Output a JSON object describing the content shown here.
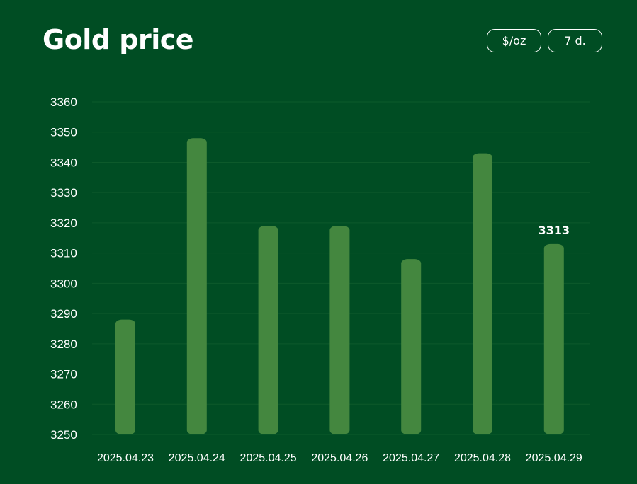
{
  "header": {
    "title": "Gold price",
    "unit_toggle": "$/oz",
    "range_toggle": "7 d."
  },
  "colors": {
    "background": "#004d23",
    "bar": "#44873f",
    "grid": "#0d5a2b",
    "divider": "#6ba35f"
  },
  "chart_data": {
    "type": "bar",
    "categories": [
      "2025.04.23",
      "2025.04.24",
      "2025.04.25",
      "2025.04.26",
      "2025.04.27",
      "2025.04.28",
      "2025.04.29"
    ],
    "values": [
      3288,
      3348,
      3319,
      3319,
      3308,
      3343,
      3313
    ],
    "ylim": [
      3250,
      3360
    ],
    "yticks": [
      3360,
      3350,
      3340,
      3330,
      3320,
      3310,
      3300,
      3290,
      3280,
      3270,
      3260,
      3250
    ],
    "grid": true,
    "data_labels": [
      {
        "index": 6,
        "text": "3313"
      }
    ]
  }
}
